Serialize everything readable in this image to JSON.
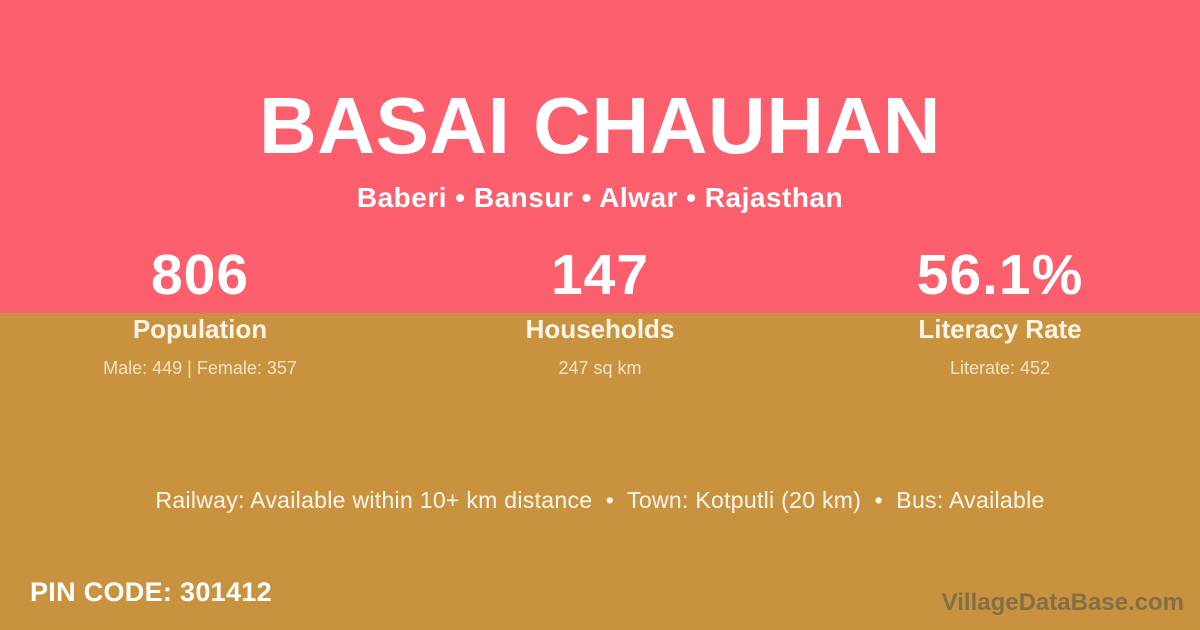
{
  "theme": {
    "pink": "#fb5e6c",
    "gold": "#c8923e",
    "text_white": "#ffffff",
    "text_cream": "#f3e3c6",
    "watermark_gray": "#5c594f"
  },
  "header": {
    "title": "BASAI CHAUHAN",
    "subtitle": "Baberi • Bansur • Alwar • Rajasthan"
  },
  "stats": [
    {
      "value": "806",
      "label": "Population",
      "detail": "Male: 449 | Female: 357"
    },
    {
      "value": "147",
      "label": "Households",
      "detail": "247 sq km"
    },
    {
      "value": "56.1%",
      "label": "Literacy Rate",
      "detail": "Literate: 452"
    }
  ],
  "transport_line": "Railway: Available within 10+ km distance  •  Town: Kotputli (20 km)  •  Bus: Available",
  "footer": {
    "pin_code": "PIN CODE: 301412",
    "watermark": "VillageDataBase.com"
  }
}
